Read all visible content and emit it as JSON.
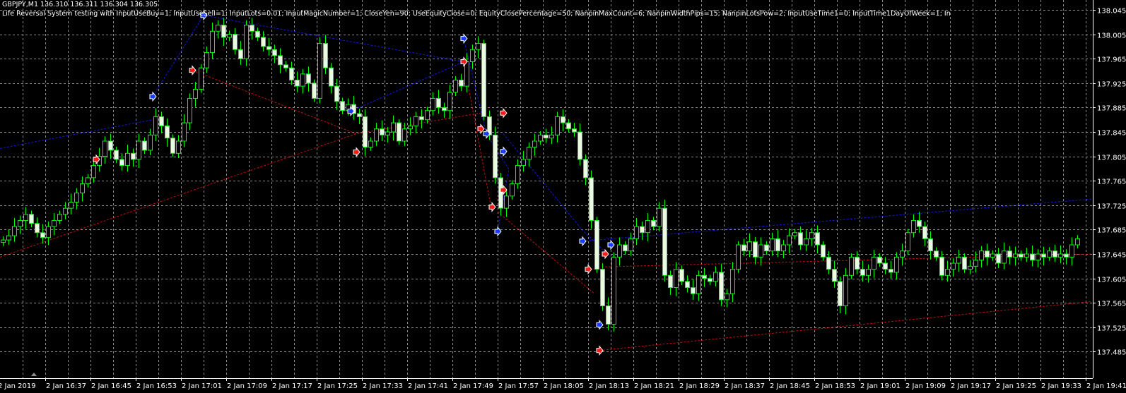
{
  "header": {
    "symbol_line": "GBPJPY,M1  136.310 136.311 136.304 136.305",
    "ea_line": "Life Reversal System testing with InputUseBuy=1; InputUseSell=1; InputLots=0.01; InputMagicNumber=1; CloseYen=90; UseEquityClose=0; EquityClosePercentage=50; NanpinMaxCount=6; NanpinWidthPips=15; NanpinLotsPow=2; InputUseTime1=0; InputTime1DayOfWeek=1; In"
  },
  "colors": {
    "background": "#000000",
    "grid": "#8c8c8c",
    "axis": "#ffffff",
    "candle_outline": "#00ff00",
    "bear_body": "#e6ffe0",
    "bull_body": "#000000",
    "buy_line": "#1a1aff",
    "sell_line": "#e01010",
    "buy_arrow": "#1a3cff",
    "sell_arrow": "#ff1a1a"
  },
  "chart_data": {
    "type": "candlestick",
    "timeframe": "M1",
    "start_time": "16:29",
    "ylim": [
      137.47,
      138.06
    ],
    "grid": true,
    "y_ticks": [
      "138.045",
      "138.005",
      "137.965",
      "137.925",
      "137.885",
      "137.845",
      "137.805",
      "137.765",
      "137.725",
      "137.685",
      "137.645",
      "137.605",
      "137.565",
      "137.525",
      "137.485"
    ],
    "x_ticks": [
      "2 Jan 2019",
      "2 Jan 16:37",
      "2 Jan 16:45",
      "2 Jan 16:53",
      "2 Jan 17:01",
      "2 Jan 17:09",
      "2 Jan 17:17",
      "2 Jan 17:25",
      "2 Jan 17:33",
      "2 Jan 17:41",
      "2 Jan 17:49",
      "2 Jan 17:57",
      "2 Jan 18:05",
      "2 Jan 18:13",
      "2 Jan 18:21",
      "2 Jan 18:29",
      "2 Jan 18:37",
      "2 Jan 18:45",
      "2 Jan 18:53",
      "2 Jan 19:01",
      "2 Jan 19:09",
      "2 Jan 19:17",
      "2 Jan 19:25",
      "2 Jan 19:33",
      "2 Jan 19:41"
    ],
    "close": [
      137.668,
      137.675,
      137.69,
      137.7,
      137.71,
      137.695,
      137.68,
      137.672,
      137.69,
      137.7,
      137.71,
      137.72,
      137.73,
      137.745,
      137.76,
      137.77,
      137.79,
      137.805,
      137.83,
      137.815,
      137.8,
      137.79,
      137.81,
      137.8,
      137.83,
      137.815,
      137.84,
      137.87,
      137.855,
      137.835,
      137.81,
      137.83,
      137.86,
      137.9,
      137.915,
      137.95,
      137.975,
      138.01,
      138.02,
      138.0,
      138.005,
      137.98,
      137.965,
      138.02,
      138.01,
      138.0,
      137.985,
      137.98,
      137.97,
      137.955,
      137.95,
      137.93,
      137.92,
      137.94,
      137.925,
      137.9,
      137.99,
      137.95,
      137.92,
      137.895,
      137.88,
      137.89,
      137.875,
      137.87,
      137.82,
      137.83,
      137.85,
      137.84,
      137.845,
      137.86,
      137.83,
      137.85,
      137.855,
      137.87,
      137.865,
      137.88,
      137.9,
      137.885,
      137.88,
      137.91,
      137.93,
      137.92,
      137.96,
      137.98,
      137.99,
      137.87,
      137.84,
      137.77,
      137.72,
      137.74,
      137.76,
      137.79,
      137.8,
      137.82,
      137.83,
      137.84,
      137.835,
      137.84,
      137.87,
      137.86,
      137.85,
      137.845,
      137.8,
      137.77,
      137.7,
      137.62,
      137.56,
      137.53,
      137.64,
      137.66,
      137.65,
      137.67,
      137.69,
      137.68,
      137.7,
      137.69,
      137.72,
      137.61,
      137.59,
      137.62,
      137.6,
      137.59,
      137.58,
      137.61,
      137.605,
      137.6,
      137.615,
      137.57,
      137.58,
      137.62,
      137.66,
      137.65,
      137.665,
      137.64,
      137.66,
      137.65,
      137.67,
      137.65,
      137.66,
      137.675,
      137.68,
      137.66,
      137.67,
      137.68,
      137.66,
      137.64,
      137.62,
      137.6,
      137.56,
      137.61,
      137.64,
      137.62,
      137.61,
      137.62,
      137.64,
      137.63,
      137.62,
      137.615,
      137.64,
      137.65,
      137.68,
      137.7,
      137.69,
      137.67,
      137.65,
      137.64,
      137.61,
      137.62,
      137.63,
      137.64,
      137.62,
      137.625,
      137.635,
      137.65,
      137.64,
      137.645,
      137.63,
      137.65,
      137.64,
      137.645,
      137.64,
      137.645,
      137.635,
      137.645,
      137.64,
      137.65,
      137.64,
      137.645,
      137.64,
      137.66,
      137.67
    ],
    "trade_lines": [
      {
        "side": "buy",
        "points": [
          [
            "16:29",
            137.818
          ],
          [
            "16:56",
            137.865
          ]
        ]
      },
      {
        "side": "buy",
        "points": [
          [
            "16:56",
            137.903
          ],
          [
            "17:05",
            138.036
          ]
        ]
      },
      {
        "side": "buy",
        "points": [
          [
            "17:05",
            138.036
          ],
          [
            "17:51",
            137.96
          ]
        ]
      },
      {
        "side": "buy",
        "points": [
          [
            "17:31",
            137.879
          ],
          [
            "17:51",
            137.96
          ]
        ]
      },
      {
        "side": "buy",
        "points": [
          [
            "17:51",
            137.998
          ],
          [
            "17:55",
            137.842
          ],
          [
            "17:59",
            137.784
          ],
          [
            "17:57",
            137.682
          ]
        ]
      },
      {
        "side": "buy",
        "points": [
          [
            "17:58",
            137.842
          ],
          [
            "18:12",
            137.684
          ],
          [
            "18:17",
            137.64
          ]
        ]
      },
      {
        "side": "buy",
        "points": [
          [
            "18:12",
            137.666
          ],
          [
            "19:42",
            137.735
          ]
        ]
      },
      {
        "side": "sell",
        "points": [
          [
            "16:29",
            137.64
          ],
          [
            "17:32",
            137.842
          ],
          [
            "17:54",
            137.876
          ]
        ]
      },
      {
        "side": "sell",
        "points": [
          [
            "17:03",
            137.946
          ],
          [
            "17:32",
            137.842
          ]
        ]
      },
      {
        "side": "sell",
        "points": [
          [
            "17:51",
            137.96
          ],
          [
            "17:56",
            137.714
          ]
        ]
      },
      {
        "side": "sell",
        "points": [
          [
            "17:57",
            137.714
          ],
          [
            "18:14",
            137.581
          ]
        ]
      },
      {
        "side": "sell",
        "points": [
          [
            "18:15",
            137.487
          ],
          [
            "19:42",
            137.567
          ]
        ]
      },
      {
        "side": "sell",
        "points": [
          [
            "18:16",
            137.624
          ],
          [
            "19:42",
            137.645
          ]
        ]
      }
    ],
    "markers": [
      {
        "side": "buy",
        "time": "16:56",
        "price": 137.903
      },
      {
        "side": "buy",
        "time": "17:05",
        "price": 138.036
      },
      {
        "side": "buy",
        "time": "17:31",
        "price": 137.879
      },
      {
        "side": "buy",
        "time": "17:51",
        "price": 137.998
      },
      {
        "side": "buy",
        "time": "17:55",
        "price": 137.842
      },
      {
        "side": "buy",
        "time": "17:58",
        "price": 137.813
      },
      {
        "side": "buy",
        "time": "17:57",
        "price": 137.682
      },
      {
        "side": "buy",
        "time": "18:12",
        "price": 137.666
      },
      {
        "side": "buy",
        "time": "18:15",
        "price": 137.529
      },
      {
        "side": "buy",
        "time": "18:17",
        "price": 137.66
      },
      {
        "side": "sell",
        "time": "16:46",
        "price": 137.8
      },
      {
        "side": "sell",
        "time": "17:03",
        "price": 137.946
      },
      {
        "side": "sell",
        "time": "17:32",
        "price": 137.812
      },
      {
        "side": "sell",
        "time": "17:51",
        "price": 137.96
      },
      {
        "side": "sell",
        "time": "17:54",
        "price": 137.85
      },
      {
        "side": "sell",
        "time": "17:58",
        "price": 137.876
      },
      {
        "side": "sell",
        "time": "17:56",
        "price": 137.722
      },
      {
        "side": "sell",
        "time": "17:58",
        "price": 137.75
      },
      {
        "side": "sell",
        "time": "18:13",
        "price": 137.62
      },
      {
        "side": "sell",
        "time": "18:16",
        "price": 137.645
      },
      {
        "side": "sell",
        "time": "18:15",
        "price": 137.487
      }
    ]
  }
}
